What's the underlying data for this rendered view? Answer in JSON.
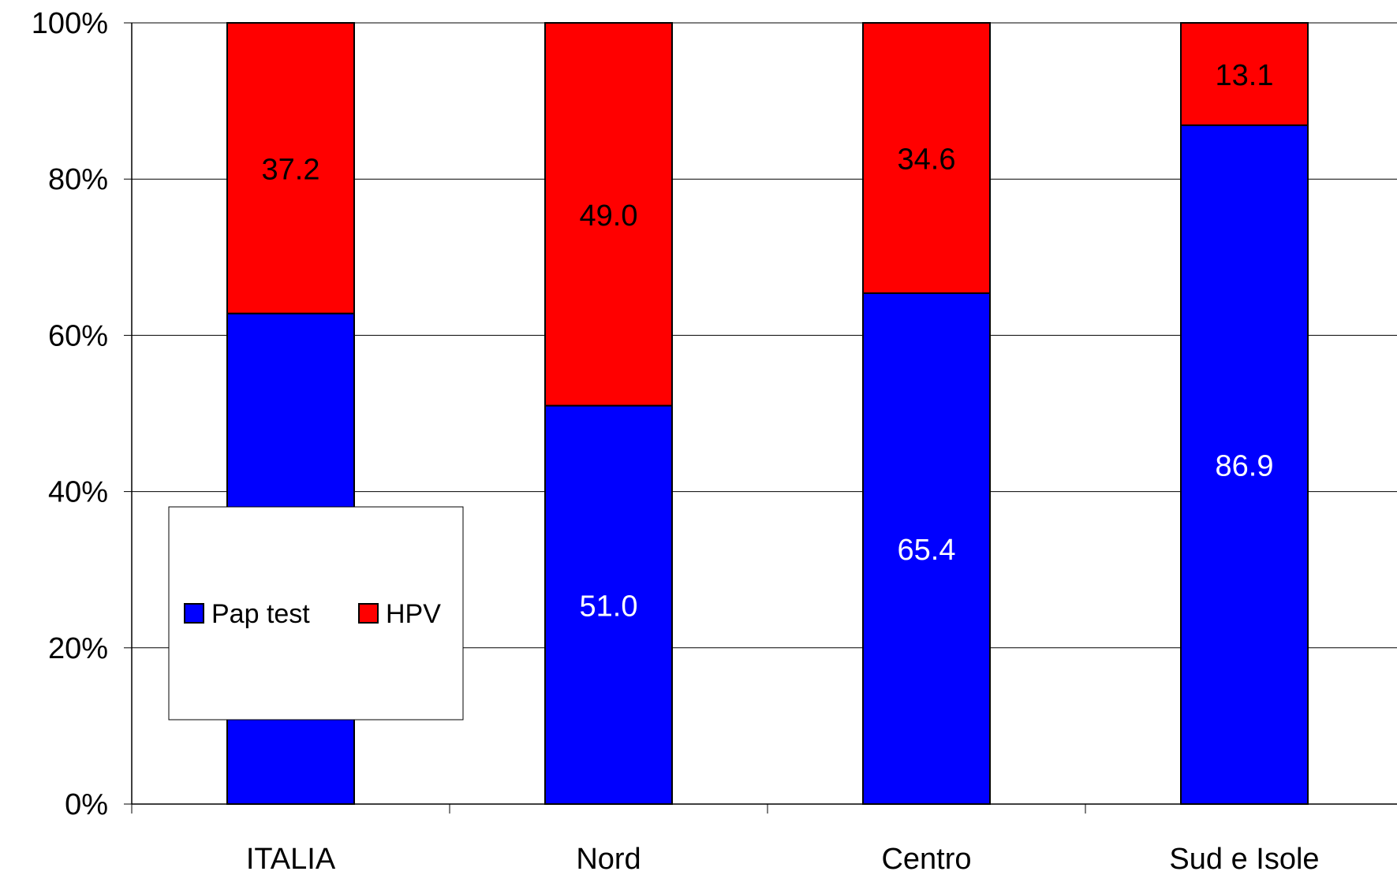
{
  "chart_data": {
    "type": "bar",
    "stacked": true,
    "percent_stacked": true,
    "categories": [
      "ITALIA",
      "Nord",
      "Centro",
      "Sud e Isole"
    ],
    "series": [
      {
        "name": "Pap test",
        "values": [
          62.8,
          51.0,
          65.4,
          86.9
        ],
        "labels": [
          "62.8",
          "51.0",
          "65.4",
          "86.9"
        ],
        "color": "#0000ff",
        "label_color": "#ffffff"
      },
      {
        "name": "HPV",
        "values": [
          37.2,
          49.0,
          34.6,
          13.1
        ],
        "labels": [
          "37.2",
          "49.0",
          "34.6",
          "13.1"
        ],
        "color": "#ff0000",
        "label_color": "#000000"
      }
    ],
    "ylim": [
      0,
      100
    ],
    "yticks": [
      0,
      20,
      40,
      60,
      80,
      100
    ],
    "ytick_labels": [
      "0%",
      "20%",
      "40%",
      "60%",
      "80%",
      "100%"
    ],
    "grid": true,
    "legend_position": "bottom-left"
  }
}
